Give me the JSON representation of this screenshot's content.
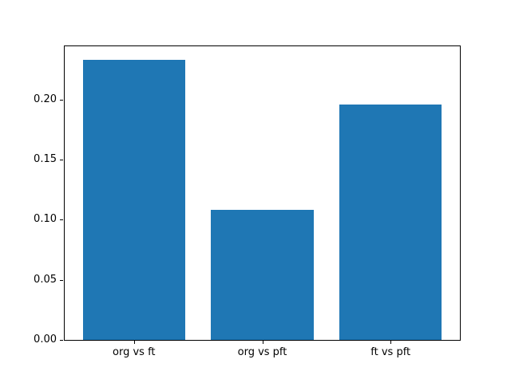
{
  "figure": {
    "background": "#ffffff"
  },
  "chart_data": {
    "type": "bar",
    "title": "",
    "xlabel": "",
    "ylabel": "",
    "categories": [
      "org vs ft",
      "org vs pft",
      "ft vs pft"
    ],
    "values": [
      0.233,
      0.108,
      0.196
    ],
    "ylim": [
      0,
      0.2445
    ],
    "yticks": [
      0,
      0.05,
      0.1,
      0.15,
      0.2
    ],
    "ytick_labels": [
      "0.00",
      "0.05",
      "0.10",
      "0.15",
      "0.20"
    ],
    "bar_color": "#1f77b4",
    "axis_color": "#000000",
    "text_color": "#000000",
    "grid": false,
    "legend": null
  }
}
